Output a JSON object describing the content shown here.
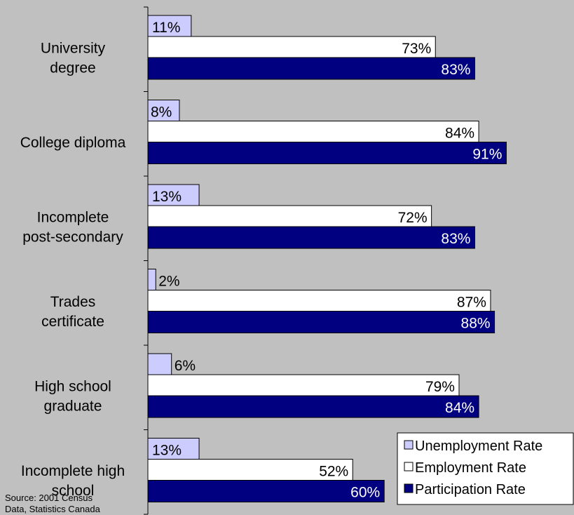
{
  "chart_data": {
    "type": "bar",
    "orientation": "horizontal",
    "categories": [
      [
        "University",
        "degree"
      ],
      [
        "College diploma"
      ],
      [
        "Incomplete",
        "post-secondary"
      ],
      [
        "Trades",
        "certificate"
      ],
      [
        "High school",
        "graduate"
      ],
      [
        "Incomplete high",
        "school"
      ]
    ],
    "series": [
      {
        "name": "Unemployment Rate",
        "color": "#ccccff",
        "values": [
          11,
          8,
          13,
          2,
          6,
          13
        ],
        "labels": [
          "11%",
          "8%",
          "13%",
          "2%",
          "6%",
          "13%"
        ]
      },
      {
        "name": "Employment Rate",
        "color": "#ffffff",
        "values": [
          73,
          84,
          72,
          87,
          79,
          52
        ],
        "labels": [
          "73%",
          "84%",
          "72%",
          "87%",
          "79%",
          "52%"
        ]
      },
      {
        "name": "Participation Rate",
        "color": "#000080",
        "values": [
          83,
          91,
          83,
          88,
          84,
          60
        ],
        "labels": [
          "83%",
          "91%",
          "83%",
          "88%",
          "84%",
          "60%"
        ]
      }
    ],
    "xlim": [
      0,
      100
    ],
    "grid": false,
    "legend_position": "bottom-right",
    "background": "#c0c0c0",
    "title": "",
    "xlabel": "",
    "ylabel": ""
  },
  "source_note": [
    "Source: 2001 Census",
    "Data, Statistics Canada"
  ]
}
